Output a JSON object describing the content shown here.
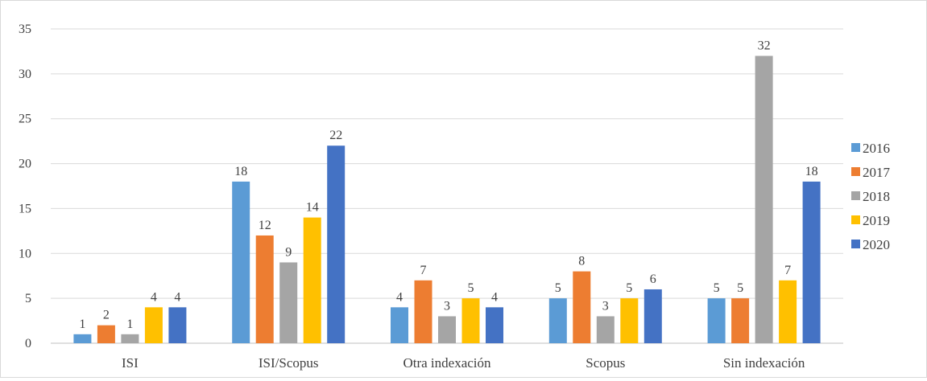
{
  "chart_data": {
    "type": "bar",
    "title": "",
    "xlabel": "",
    "ylabel": "",
    "categories": [
      "ISI",
      "ISI/Scopus",
      "Otra indexación",
      "Scopus",
      "Sin indexación"
    ],
    "series": [
      {
        "name": "2016",
        "color": "#5b9bd5",
        "values": [
          1,
          18,
          4,
          5,
          5
        ]
      },
      {
        "name": "2017",
        "color": "#ed7d31",
        "values": [
          2,
          12,
          7,
          8,
          5
        ]
      },
      {
        "name": "2018",
        "color": "#a5a5a5",
        "values": [
          1,
          9,
          3,
          3,
          32
        ]
      },
      {
        "name": "2019",
        "color": "#ffc000",
        "values": [
          4,
          14,
          5,
          5,
          7
        ]
      },
      {
        "name": "2020",
        "color": "#4472c4",
        "values": [
          4,
          22,
          4,
          6,
          18
        ]
      }
    ],
    "ylim": [
      0,
      35
    ],
    "yticks": [
      0,
      5,
      10,
      15,
      20,
      25,
      30,
      35
    ],
    "grid": true,
    "legend": "right",
    "data_labels": true
  }
}
